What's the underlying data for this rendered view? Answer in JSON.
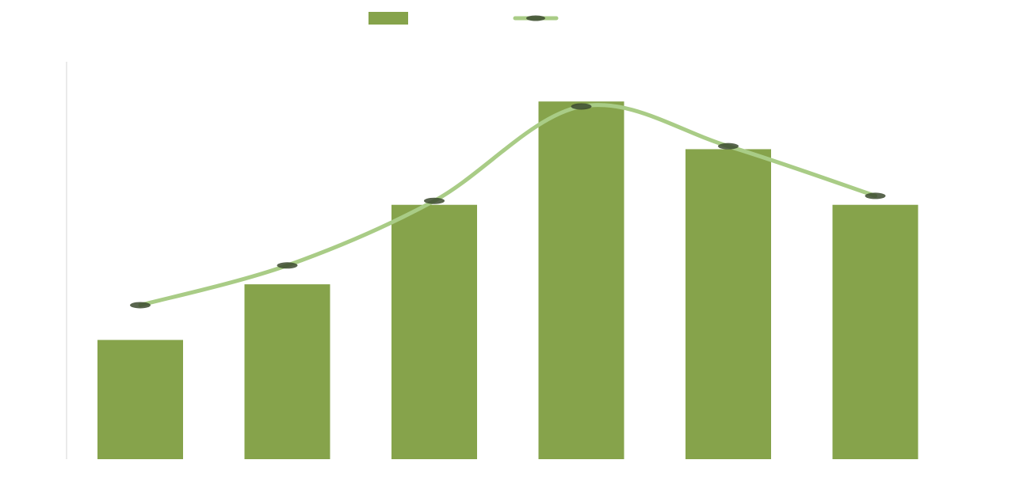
{
  "chart_data": {
    "type": "bar",
    "title": "",
    "xlabel": "",
    "ylabel": "",
    "categories": [
      "",
      "",
      "",
      "",
      "",
      ""
    ],
    "bar_series": {
      "name": "",
      "color": "#86A34B",
      "values": [
        30,
        44,
        64,
        90,
        78,
        64
      ],
      "labels": [
        "",
        "",
        "",
        "",
        "",
        ""
      ]
    },
    "line_series": {
      "name": "",
      "color": "#A9CC86",
      "marker_color": "#3C4A2F",
      "values": [
        31,
        39,
        52,
        71,
        63,
        53
      ]
    },
    "y_left": {
      "min": 0,
      "max": 100,
      "ticks": [
        0,
        10,
        20,
        30,
        40,
        50,
        60,
        70,
        80,
        90,
        100
      ],
      "tick_labels": [
        "",
        "",
        "",
        "",
        "",
        "",
        "",
        "",
        "",
        "",
        ""
      ]
    },
    "y_right": {
      "min": 0,
      "max": 80,
      "ticks": [
        0,
        10,
        20,
        30,
        40,
        50,
        60,
        70,
        80
      ],
      "tick_labels": [
        "",
        "",
        "",
        "",
        "",
        "",
        "",
        "",
        ""
      ]
    },
    "grid": false,
    "legend_position": "top-center"
  }
}
